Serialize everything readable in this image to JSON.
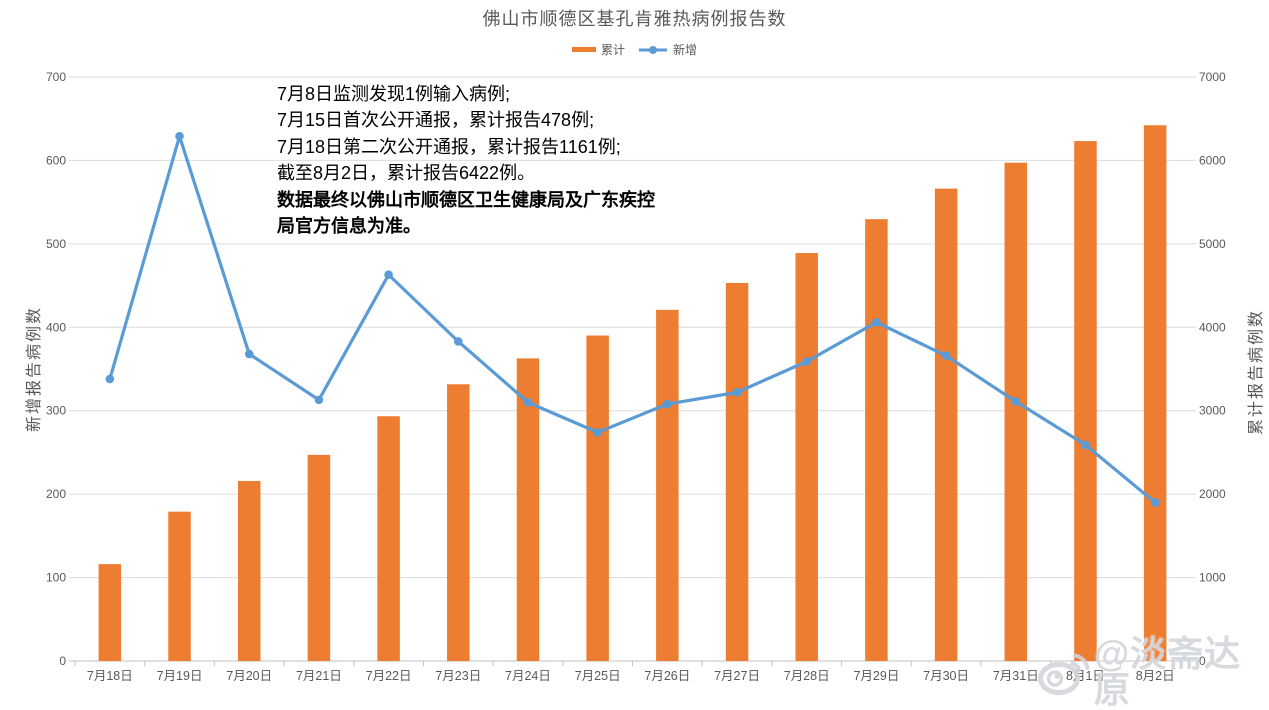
{
  "chart_data": {
    "type": "combo",
    "title": "佛山市顺德区基孔肯雅热病例报告数",
    "categories": [
      "7月18日",
      "7月19日",
      "7月20日",
      "7月21日",
      "7月22日",
      "7月23日",
      "7月24日",
      "7月25日",
      "7月26日",
      "7月27日",
      "7月28日",
      "7月29日",
      "7月30日",
      "7月31日",
      "8月1日",
      "8月2日"
    ],
    "series": [
      {
        "name": "累计",
        "type": "bar",
        "axis": "right",
        "color": "#ED7D31",
        "values": [
          1161,
          1790,
          2158,
          2471,
          2934,
          3317,
          3627,
          3901,
          4209,
          4531,
          4890,
          5296,
          5662,
          5973,
          6232,
          6422
        ]
      },
      {
        "name": "新增",
        "type": "line",
        "axis": "left",
        "color": "#5B9BD5",
        "values": [
          338,
          629,
          368,
          313,
          463,
          383,
          310,
          274,
          308,
          322,
          359,
          406,
          366,
          311,
          259,
          190
        ]
      }
    ],
    "left_axis": {
      "title": "新增报告病例数",
      "min": 0,
      "max": 700,
      "step": 100
    },
    "right_axis": {
      "title": "累计报告病例数",
      "min": 0,
      "max": 7000,
      "step": 1000
    },
    "grid": true,
    "legend_position": "top-center"
  },
  "annotation": {
    "lines": [
      {
        "text": "7月8日监测发现1例输入病例;",
        "bold": false
      },
      {
        "text": "7月15日首次公开通报，累计报告478例;",
        "bold": false
      },
      {
        "text": "7月18日第二次公开通报，累计报告1161例;",
        "bold": false
      },
      {
        "text": "截至8月2日，累计报告6422例。",
        "bold": false
      },
      {
        "text": "数据最终以佛山市顺德区卫生健康局及广东疾控",
        "bold": true
      },
      {
        "text": "局官方信息为准。",
        "bold": true
      }
    ]
  },
  "watermark": {
    "icon": "weibo-icon",
    "text": "@淡斋达原"
  },
  "colors": {
    "bar": "#ED7D31",
    "line": "#5B9BD5",
    "grid": "#DCDCDC",
    "axis_line": "#C3C3C3",
    "axis_text": "#595959",
    "title_text": "#595959"
  }
}
